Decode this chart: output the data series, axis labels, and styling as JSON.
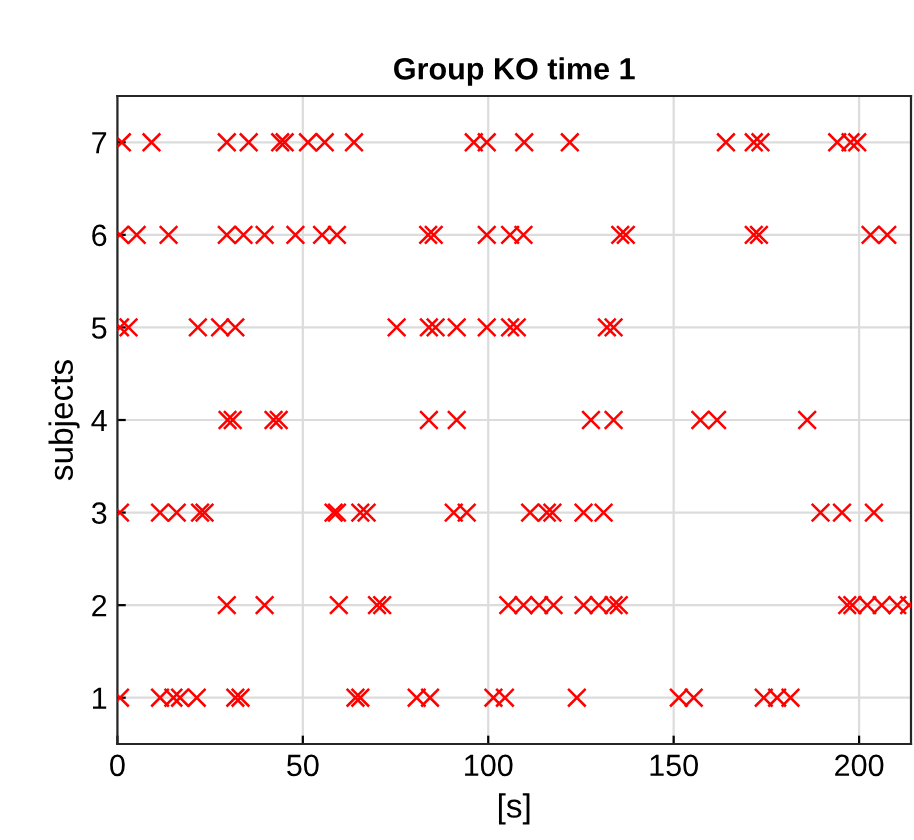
{
  "chart_data": {
    "type": "scatter",
    "title": "Group KO time 1",
    "xlabel": "[s]",
    "ylabel": "subjects",
    "xlim": [
      0,
      214
    ],
    "xticks": [
      0,
      50,
      100,
      150,
      200
    ],
    "ylim": [
      0.5,
      7.5
    ],
    "yticks": [
      1,
      2,
      3,
      4,
      5,
      6,
      7
    ],
    "grid": true,
    "marker": "cross",
    "series": [
      {
        "color": "#ff0000",
        "x": [
          0.7,
          11.5,
          15.1,
          16.9,
          21.4,
          31.8,
          33.2,
          64.2,
          65.5,
          80.7,
          84.3,
          101.4,
          104.5,
          123.9,
          151.4,
          155.4,
          174.3,
          177.9,
          181.5
        ],
        "values": [
          1,
          1,
          1,
          1,
          1,
          1,
          1,
          1,
          1,
          1,
          1,
          1,
          1,
          1,
          1,
          1,
          1,
          1,
          1
        ]
      },
      {
        "color": "#ff0000",
        "x": [
          29.5,
          39.7,
          59.7,
          70.0,
          71.4,
          105.4,
          109.5,
          113.7,
          117.6,
          125.7,
          129.8,
          133.8,
          135.2,
          196.8,
          198.2,
          202.2,
          206.1,
          210.3,
          213.5
        ],
        "values": [
          2,
          2,
          2,
          2,
          2,
          2,
          2,
          2,
          2,
          2,
          2,
          2,
          2,
          2,
          2,
          2,
          2,
          2,
          2
        ]
      },
      {
        "color": "#ff0000",
        "x": [
          0.7,
          11.5,
          16.0,
          22.3,
          23.5,
          58.3,
          59.2,
          65.5,
          67.2,
          90.7,
          94.2,
          111.3,
          115.8,
          117.3,
          125.7,
          131.1,
          189.6,
          195.4,
          204.0
        ],
        "values": [
          3,
          3,
          3,
          3,
          3,
          3,
          3,
          3,
          3,
          3,
          3,
          3,
          3,
          3,
          3,
          3,
          3,
          3,
          3
        ]
      },
      {
        "color": "#ff0000",
        "x": [
          29.7,
          31.1,
          42.1,
          43.5,
          84.0,
          91.5,
          127.7,
          133.8,
          157.2,
          161.7,
          186.0
        ],
        "values": [
          4,
          4,
          4,
          4,
          4,
          4,
          4,
          4,
          4,
          4,
          4
        ]
      },
      {
        "color": "#ff0000",
        "x": [
          0.7,
          3.0,
          21.7,
          27.7,
          31.8,
          75.3,
          84.0,
          85.8,
          91.5,
          99.6,
          105.9,
          107.7,
          132.0,
          133.8
        ],
        "values": [
          5,
          5,
          5,
          5,
          5,
          5,
          5,
          5,
          5,
          5,
          5,
          5,
          5,
          5
        ]
      },
      {
        "color": "#ff0000",
        "x": [
          0.7,
          5.2,
          13.8,
          29.5,
          34.0,
          39.7,
          48.0,
          55.2,
          59.2,
          83.8,
          85.3,
          99.6,
          105.9,
          109.5,
          135.6,
          137.1,
          171.6,
          173.0,
          203.1,
          207.6
        ],
        "values": [
          6,
          6,
          6,
          6,
          6,
          6,
          6,
          6,
          6,
          6,
          6,
          6,
          6,
          6,
          6,
          6,
          6,
          6,
          6,
          6
        ]
      },
      {
        "color": "#ff0000",
        "x": [
          1.2,
          9.2,
          29.5,
          35.4,
          43.9,
          45.1,
          51.4,
          55.9,
          63.8,
          96.1,
          99.6,
          109.7,
          122.0,
          164.1,
          171.6,
          173.4,
          194.1,
          197.7,
          199.5
        ],
        "values": [
          7,
          7,
          7,
          7,
          7,
          7,
          7,
          7,
          7,
          7,
          7,
          7,
          7,
          7,
          7,
          7,
          7,
          7,
          7
        ]
      }
    ]
  }
}
